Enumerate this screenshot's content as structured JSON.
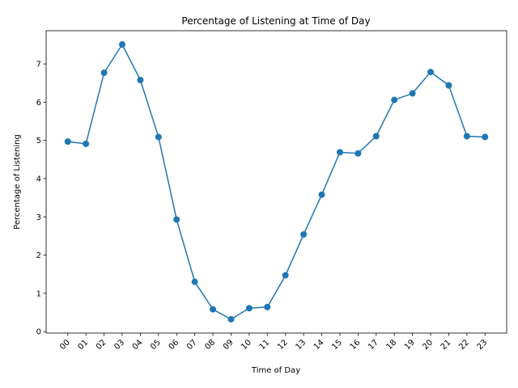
{
  "chart_data": {
    "type": "line",
    "title": "Percentage of Listening at Time of Day",
    "xlabel": "Time of Day",
    "ylabel": "Percentage of Listening",
    "categories": [
      "00",
      "01",
      "02",
      "03",
      "04",
      "05",
      "06",
      "07",
      "08",
      "09",
      "10",
      "11",
      "12",
      "13",
      "14",
      "15",
      "16",
      "17",
      "18",
      "19",
      "20",
      "21",
      "22",
      "23"
    ],
    "series": [
      {
        "values": [
          4.97,
          4.91,
          6.77,
          7.51,
          6.58,
          5.09,
          2.93,
          1.3,
          0.58,
          0.32,
          0.61,
          0.64,
          1.47,
          2.54,
          3.58,
          4.69,
          4.66,
          5.11,
          6.06,
          6.23,
          6.79,
          6.44,
          5.11,
          5.09
        ],
        "color": "#1f77b4"
      }
    ],
    "ylim": [
      -0.04,
      7.87
    ],
    "yticks": [
      0,
      1,
      2,
      3,
      4,
      5,
      6,
      7
    ],
    "grid": false,
    "marker": "circle"
  }
}
